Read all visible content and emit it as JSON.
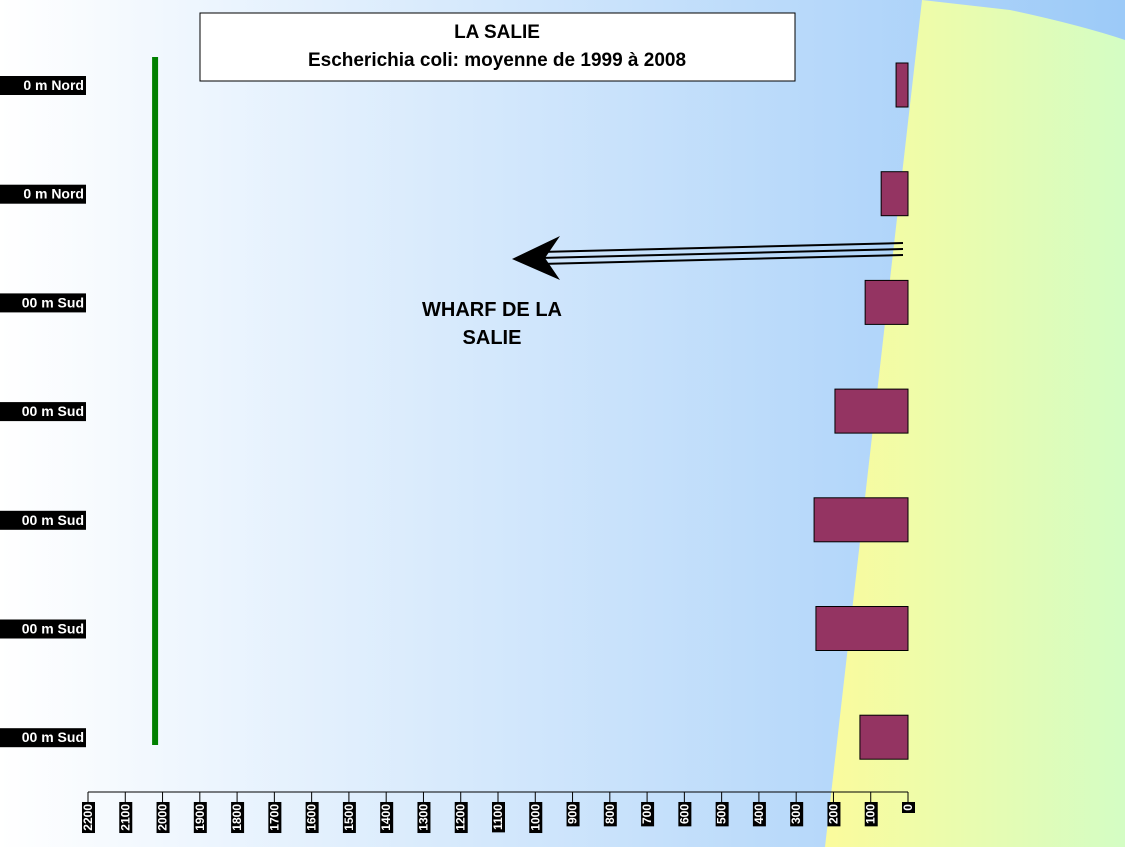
{
  "chart_data": {
    "type": "barh",
    "title": "LA SALIE",
    "subtitle": "Escherichia coli: moyenne de 1999 à 2008",
    "annotation": "WHARF DE LA SALIE",
    "categories": [
      "0 m Nord",
      "0 m Nord",
      "00 m Sud",
      "00 m Sud",
      "00 m Sud",
      "00 m Sud",
      "00 m Sud"
    ],
    "values": [
      32,
      72,
      115,
      196,
      252,
      247,
      129
    ],
    "color": "#943462",
    "xlim": [
      0,
      2200
    ],
    "x_reversed": true,
    "xticks": [
      0,
      100,
      200,
      300,
      400,
      500,
      600,
      700,
      800,
      900,
      1000,
      1100,
      1200,
      1300,
      1400,
      1500,
      1600,
      1700,
      1800,
      1900,
      2000,
      2100,
      2200
    ],
    "reference_line": {
      "value": 2020,
      "color": "#008000"
    }
  }
}
